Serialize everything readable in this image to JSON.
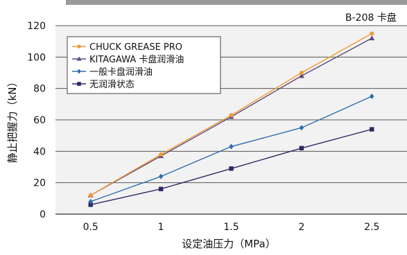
{
  "chart_data": {
    "type": "line",
    "corner_label": "B-208 卡盘",
    "xlabel": "设定油压力（MPa）",
    "ylabel": "静止把握力（kN）",
    "x": [
      0.5,
      1,
      1.5,
      2,
      2.5
    ],
    "x_tick_labels": [
      "0.5",
      "1",
      "1.5",
      "2",
      "2.5"
    ],
    "xlim": [
      0.25,
      2.75
    ],
    "ylim": [
      0,
      120
    ],
    "y_ticks": [
      0,
      20,
      40,
      60,
      80,
      100,
      120
    ],
    "grid": true,
    "legend_position": "top-left",
    "series": [
      {
        "name": "CHUCK GREASE PRO",
        "color": "#F39A2E",
        "marker": "circle",
        "values": [
          12,
          38,
          63,
          90,
          115
        ]
      },
      {
        "name": "KITAGAWA 卡盘润滑油",
        "color": "#5B4A7E",
        "marker": "triangle",
        "values": [
          12,
          37,
          62,
          88,
          112
        ]
      },
      {
        "name": "一般卡盘润滑油",
        "color": "#2E6BB0",
        "marker": "diamond",
        "values": [
          8,
          24,
          43,
          55,
          75
        ]
      },
      {
        "name": "无润滑状态",
        "color": "#2E2766",
        "marker": "square",
        "values": [
          6,
          16,
          29,
          42,
          54
        ]
      }
    ]
  }
}
